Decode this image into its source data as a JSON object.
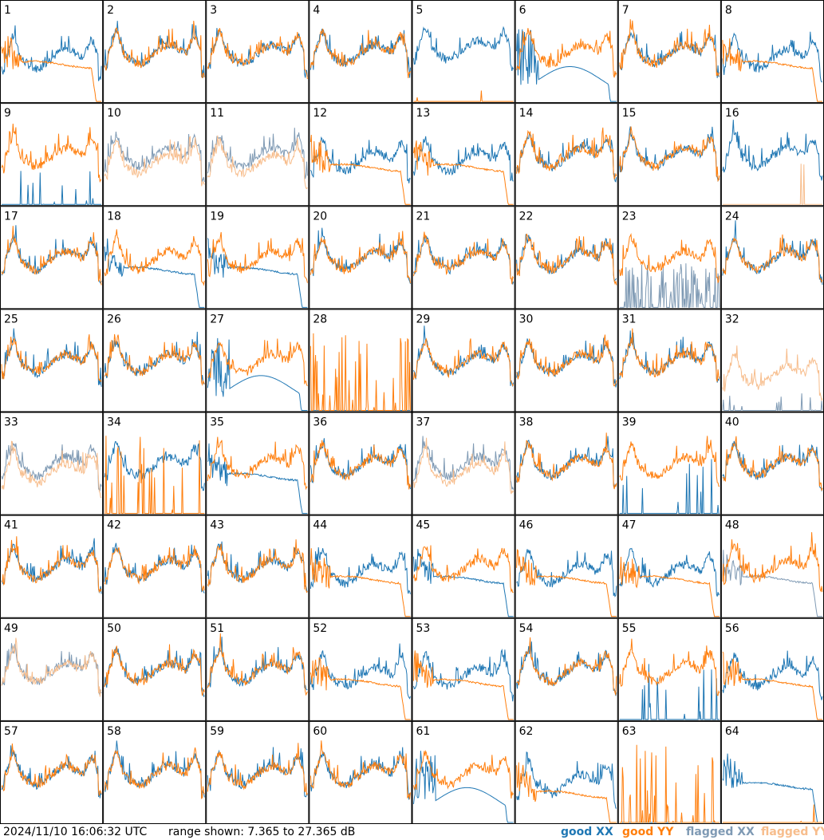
{
  "chart_data": {
    "type": "line",
    "description_note": "",
    "panels": [
      "1",
      "2",
      "3",
      "4",
      "5",
      "6",
      "7",
      "8",
      "9",
      "10",
      "11",
      "12",
      "13",
      "14",
      "15",
      "16",
      "17",
      "18",
      "19",
      "20",
      "21",
      "22",
      "23",
      "24",
      "25",
      "26",
      "27",
      "28",
      "29",
      "30",
      "31",
      "32",
      "33",
      "34",
      "35",
      "36",
      "37",
      "38",
      "39",
      "40",
      "41",
      "42",
      "43",
      "44",
      "45",
      "46",
      "47",
      "48",
      "49",
      "50",
      "51",
      "52",
      "53",
      "54",
      "55",
      "56",
      "57",
      "58",
      "59",
      "60",
      "61",
      "62",
      "63",
      "64"
    ],
    "series": [
      {
        "name": "good XX",
        "color": "#1f77b4"
      },
      {
        "name": "good YY",
        "color": "#ff7f0e"
      },
      {
        "name": "flagged XX",
        "color": "#7f9ab4"
      },
      {
        "name": "flagged YY",
        "color": "#f7bd8c"
      }
    ],
    "ylim_db": [
      7.365,
      27.365
    ],
    "panel_styles": {
      "1": "droopA",
      "2": "normal",
      "3": "normal",
      "4": "normal",
      "5": "spikyXX",
      "6": "droopB",
      "7": "normal",
      "8": "droopA",
      "9": "sparseXX",
      "10": "flagYY",
      "11": "flagYY",
      "12": "droopA",
      "13": "droopA",
      "14": "normal",
      "15": "normal",
      "16": "onlyXX",
      "17": "normal",
      "18": "droopX",
      "19": "droopX",
      "20": "normal",
      "21": "normal",
      "22": "normal",
      "23": "flagXXnoise",
      "24": "normal",
      "25": "normal",
      "26": "normal",
      "27": "droopB",
      "28": "yyspikes",
      "29": "normal",
      "30": "normal",
      "31": "normal",
      "32": "flagYYonly",
      "33": "flagYY",
      "34": "yyspikesXX",
      "35": "droopX",
      "36": "normal",
      "37": "flagYY",
      "38": "normal",
      "39": "onlyYY",
      "40": "normal",
      "41": "normal",
      "42": "normal",
      "43": "normal",
      "44": "droopA",
      "45": "droopX",
      "46": "droopA",
      "47": "droopA",
      "48": "flagXX",
      "49": "flagBoth",
      "50": "normal",
      "51": "normal",
      "52": "droopA",
      "53": "droopA",
      "54": "normal",
      "55": "onlyYY",
      "56": "droopA",
      "57": "normal",
      "58": "normal",
      "59": "normal",
      "60": "normal",
      "61": "droopB",
      "62": "droopY",
      "63": "yyspikes",
      "64": "onlyXXflat"
    }
  },
  "footer": {
    "timestamp": "2024/11/10 16:06:32 UTC",
    "range_text": "range shown: 7.365 to 27.365 dB"
  },
  "legend": {
    "good_xx": "good XX",
    "good_yy": "good YY",
    "flagged_xx": "flagged XX",
    "flagged_yy": "flagged YY"
  }
}
